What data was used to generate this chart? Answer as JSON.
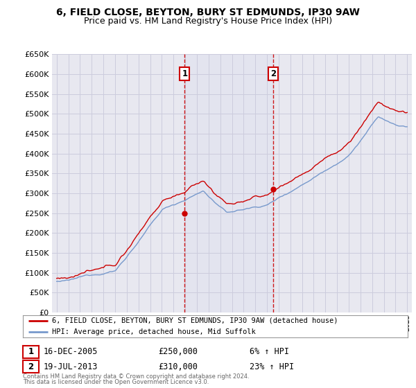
{
  "title": "6, FIELD CLOSE, BEYTON, BURY ST EDMUNDS, IP30 9AW",
  "subtitle": "Price paid vs. HM Land Registry's House Price Index (HPI)",
  "ylim": [
    0,
    650000
  ],
  "yticks": [
    0,
    50000,
    100000,
    150000,
    200000,
    250000,
    300000,
    350000,
    400000,
    450000,
    500000,
    550000,
    600000,
    650000
  ],
  "xlim_start": 1994.6,
  "xlim_end": 2025.4,
  "bg_color": "#e8e8f0",
  "grid_color": "#ccccdd",
  "red_line_color": "#cc0000",
  "blue_line_color": "#7799cc",
  "sale1_x": 2005.96,
  "sale1_y": 250000,
  "sale1_label": "1",
  "sale2_x": 2013.54,
  "sale2_y": 310000,
  "sale2_label": "2",
  "dashed_line_color": "#cc0000",
  "legend_red_label": "6, FIELD CLOSE, BEYTON, BURY ST EDMUNDS, IP30 9AW (detached house)",
  "legend_blue_label": "HPI: Average price, detached house, Mid Suffolk",
  "annotation1_num": "1",
  "annotation1_date": "16-DEC-2005",
  "annotation1_price": "£250,000",
  "annotation1_hpi": "6% ↑ HPI",
  "annotation2_num": "2",
  "annotation2_date": "19-JUL-2013",
  "annotation2_price": "£310,000",
  "annotation2_hpi": "23% ↑ HPI",
  "footnote1": "Contains HM Land Registry data © Crown copyright and database right 2024.",
  "footnote2": "This data is licensed under the Open Government Licence v3.0.",
  "title_fontsize": 10,
  "subtitle_fontsize": 9
}
